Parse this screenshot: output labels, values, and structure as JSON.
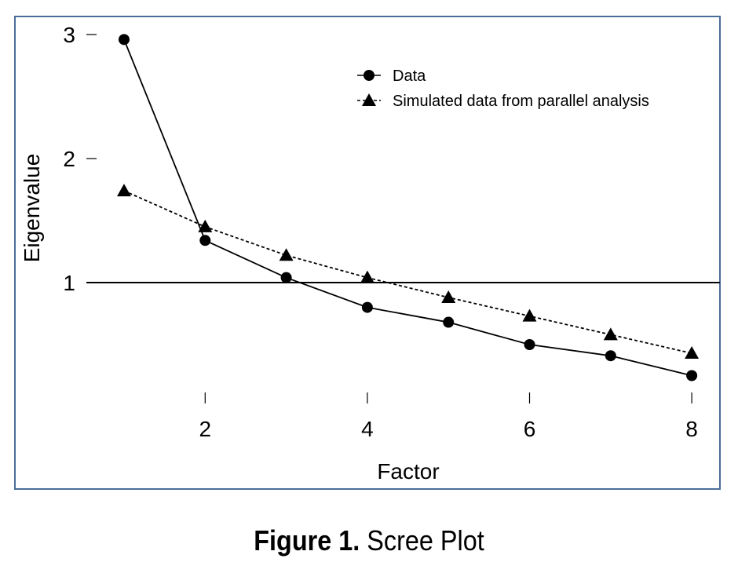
{
  "chart_data": {
    "type": "line",
    "xlabel": "Factor",
    "ylabel": "Eigenvalue",
    "x": [
      1,
      2,
      3,
      4,
      5,
      6,
      7,
      8
    ],
    "series": [
      {
        "name": "Data",
        "marker": "circle",
        "style": "solid",
        "values": [
          2.96,
          1.34,
          1.04,
          0.8,
          0.68,
          0.5,
          0.41,
          0.25
        ]
      },
      {
        "name": "Simulated data from parallel analysis",
        "marker": "triangle",
        "style": "dotted",
        "values": [
          1.74,
          1.45,
          1.22,
          1.04,
          0.88,
          0.73,
          0.58,
          0.43
        ]
      }
    ],
    "xticks": [
      "2",
      "4",
      "6",
      "8"
    ],
    "yticks": [
      "1",
      "2",
      "3"
    ],
    "reference_line": 1,
    "xlim": [
      0.5,
      8.5
    ],
    "ylim": [
      0,
      3.1
    ],
    "legend_position": "top-right",
    "colors": {
      "frame": "#4a6e99",
      "ink": "#000000"
    }
  },
  "caption": {
    "label": "Figure 1.",
    "text": "Scree Plot"
  }
}
